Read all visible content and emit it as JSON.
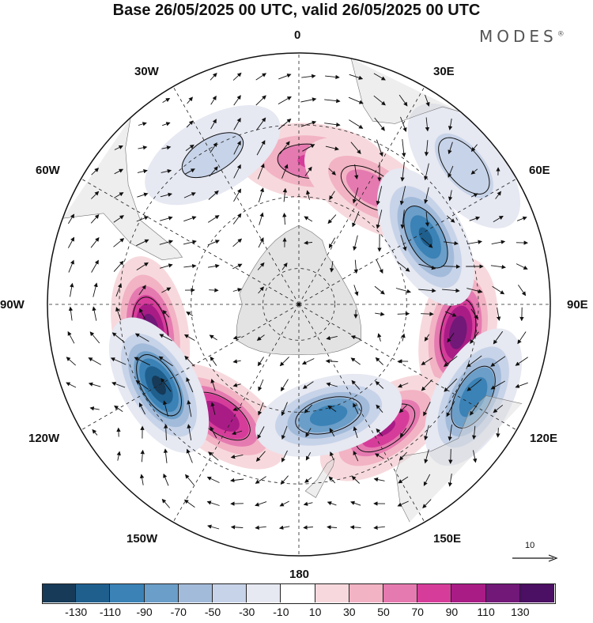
{
  "figure": {
    "title": "Base 26/05/2025 00 UTC, valid 26/05/2025 00 UTC",
    "brand": "MODES",
    "brand_mark": "®"
  },
  "map": {
    "projection": "south-polar-stereographic",
    "background": "#ffffff",
    "land_color": "#d9d9d9",
    "longitude_labels": [
      "0",
      "30E",
      "60E",
      "90E",
      "120E",
      "150E",
      "180",
      "150W",
      "120W",
      "90W",
      "60W",
      "30W"
    ],
    "anomaly_centers": [
      {
        "lon": -100,
        "lat": -48,
        "value": 125
      },
      {
        "lon": 100,
        "lat": -45,
        "value": 125
      },
      {
        "lon": -145,
        "lat": -52,
        "value": 110
      },
      {
        "lon": 145,
        "lat": -48,
        "value": 95
      },
      {
        "lon": 5,
        "lat": -50,
        "value": 75
      },
      {
        "lon": 32,
        "lat": -52,
        "value": 65
      },
      {
        "lon": -120,
        "lat": -45,
        "value": -135
      },
      {
        "lon": 62,
        "lat": -50,
        "value": -115
      },
      {
        "lon": 165,
        "lat": -58,
        "value": -105
      },
      {
        "lon": 118,
        "lat": -35,
        "value": -110
      },
      {
        "lon": -30,
        "lat": -42,
        "value": -40
      },
      {
        "lon": 50,
        "lat": -30,
        "value": -45
      }
    ],
    "reference_vector": {
      "label": "10"
    }
  },
  "colorbar": {
    "ticks": [
      "-130",
      "-110",
      "-90",
      "-70",
      "-50",
      "-30",
      "-10",
      "10",
      "30",
      "50",
      "70",
      "90",
      "110",
      "130"
    ],
    "colors": [
      "#163a58",
      "#1f5f8e",
      "#3b82b6",
      "#6b9ec8",
      "#a3bbda",
      "#c7d3e8",
      "#e6e8f2",
      "#ffffff",
      "#f7d9dd",
      "#f2b3c4",
      "#e57ab0",
      "#d63d9a",
      "#a91c86",
      "#711878",
      "#4b0f63"
    ]
  }
}
